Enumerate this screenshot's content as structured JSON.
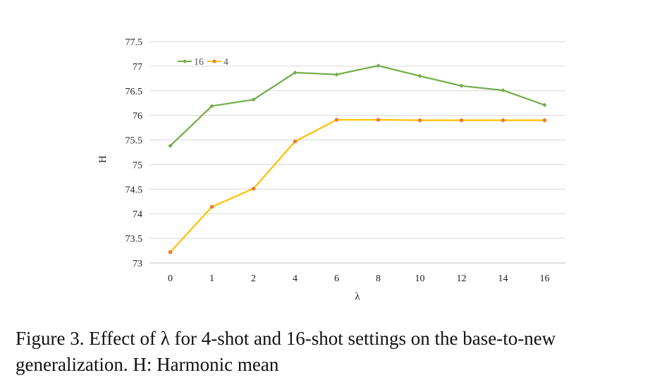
{
  "chart_data": {
    "type": "line",
    "xlabel": "λ",
    "ylabel": "H",
    "categories": [
      "0",
      "1",
      "2",
      "4",
      "6",
      "8",
      "10",
      "12",
      "14",
      "16"
    ],
    "ylim": [
      73,
      77.5
    ],
    "yticks": [
      "73",
      "73.5",
      "74",
      "74.5",
      "75",
      "75.5",
      "76",
      "76.5",
      "77",
      "77.5"
    ],
    "grid": "horizontal",
    "legend_position": "top-left",
    "series": [
      {
        "name": "16",
        "color": "#70ad47",
        "marker_color": "#70ad47",
        "values": [
          75.38,
          76.19,
          76.32,
          76.87,
          76.83,
          77.01,
          76.8,
          76.6,
          76.51,
          76.21
        ]
      },
      {
        "name": "4",
        "color": "#ffc000",
        "marker_color": "#ed7d31",
        "values": [
          73.22,
          74.14,
          74.51,
          75.47,
          75.91,
          75.91,
          75.9,
          75.9,
          75.9,
          75.9
        ]
      }
    ]
  },
  "caption": "Figure 3. Effect of λ for 4-shot and 16-shot settings on the base-to-new generalization. H: Harmonic mean"
}
